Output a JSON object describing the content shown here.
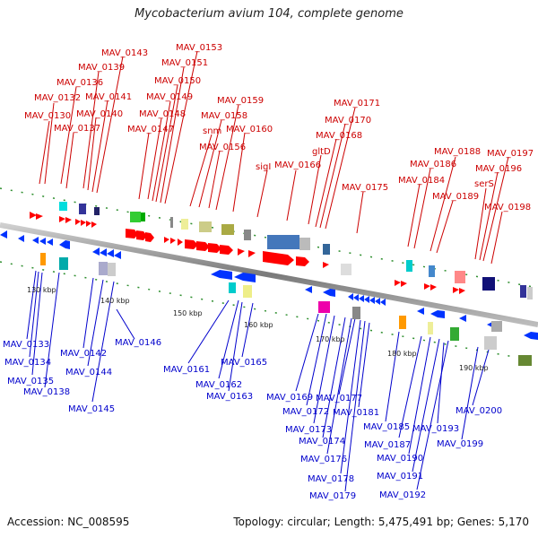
{
  "header": {
    "title": "Mycobacterium avium 104, complete genome"
  },
  "footer": {
    "accession": "Accession: NC_008595",
    "summary": "Topology: circular; Length: 5,475,491 bp; Genes: 5,170"
  },
  "scale": [
    "130 kbp",
    "140 kbp",
    "150 kbp",
    "160 kbp",
    "170 kbp",
    "180 kbp",
    "190 kbp"
  ],
  "top_labels": [
    "MAV_0130",
    "MAV_0132",
    "MAV_0136",
    "MAV_0139",
    "MAV_0143",
    "MAV_0137",
    "MAV_0140",
    "MAV_0141",
    "MAV_0147",
    "MAV_0148",
    "MAV_0149",
    "MAV_0150",
    "MAV_0151",
    "MAV_0153",
    "MAV_0156",
    "snm",
    "MAV_0158",
    "MAV_0159",
    "MAV_0160",
    "sigI",
    "MAV_0166",
    "gltD",
    "MAV_0168",
    "MAV_0170",
    "MAV_0171",
    "MAV_0175",
    "MAV_0184",
    "MAV_0186",
    "MAV_0188",
    "MAV_0189",
    "serS",
    "MAV_0196",
    "MAV_0197",
    "MAV_0198"
  ],
  "bottom_labels": [
    "MAV_0133",
    "MAV_0134",
    "MAV_0135",
    "MAV_0138",
    "MAV_0142",
    "MAV_0144",
    "MAV_0145",
    "MAV_0146",
    "MAV_0161",
    "MAV_0162",
    "MAV_0163",
    "MAV_0165",
    "MAV_0169",
    "MAV_0172",
    "MAV_0173",
    "MAV_0174",
    "MAV_0176",
    "MAV_0177",
    "MAV_0178",
    "MAV_0179",
    "MAV_0181",
    "MAV_0185",
    "MAV_0187",
    "MAV_0190",
    "MAV_0191",
    "MAV_0192",
    "MAV_0193",
    "MAV_0199",
    "MAV_0200"
  ],
  "colors": {
    "forward": "#ff0000",
    "reverse": "#0033ff",
    "top_label": "#cc0000",
    "bottom_label": "#0000cc",
    "backbone": "#888888"
  }
}
